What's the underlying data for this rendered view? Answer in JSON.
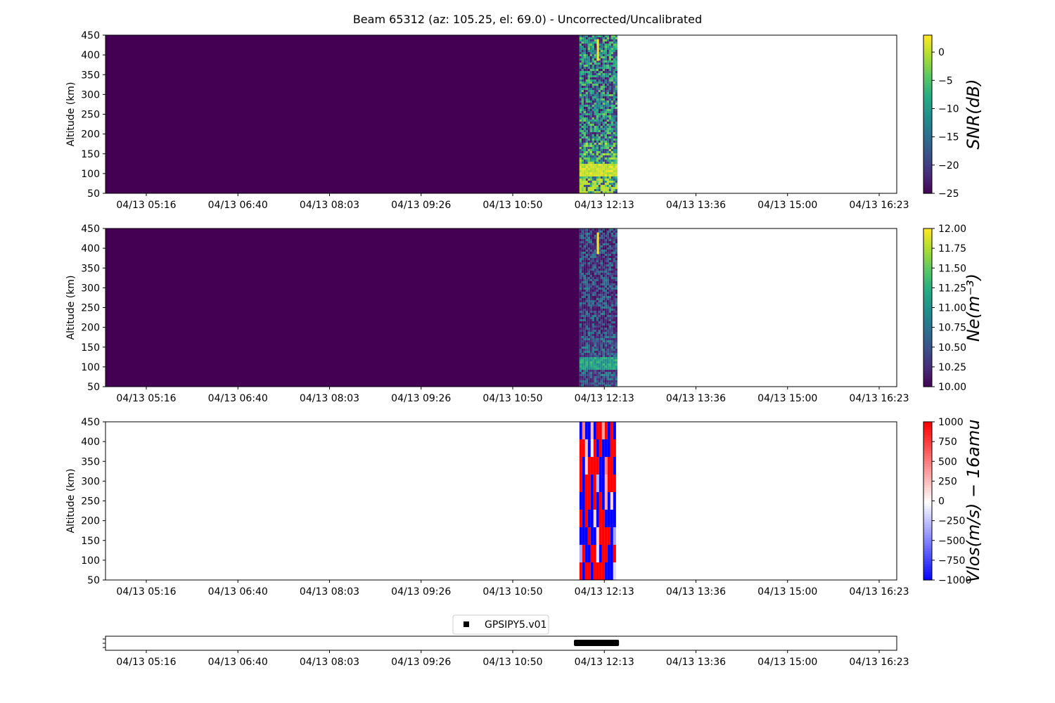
{
  "figure_title": "Beam 65312 (az: 105.25, el: 69.0) - Uncorrected/Uncalibrated",
  "time_ticks": [
    "04/13 05:16",
    "04/13 06:40",
    "04/13 08:03",
    "04/13 09:26",
    "04/13 10:50",
    "04/13 12:13",
    "04/13 13:36",
    "04/13 15:00",
    "04/13 16:23"
  ],
  "colors": {
    "viridis_low": "#440154",
    "viridis_high": "#fde725",
    "bwr_blue": "#0000ff",
    "bwr_red": "#ff0000",
    "marker": "#000000"
  },
  "chart_data": [
    {
      "type": "heatmap",
      "name": "snr",
      "ylabel": "Altitude (km)",
      "ylim": [
        50,
        450
      ],
      "yticks": [
        "50",
        "100",
        "150",
        "200",
        "250",
        "300",
        "350",
        "400",
        "450"
      ],
      "colorbar_label": "SNR(dB)",
      "colorbar_ticks": [
        "0",
        "−5",
        "−10",
        "−15",
        "−20",
        "−25"
      ],
      "colorbar_values": [
        0,
        -5,
        -10,
        -15,
        -20,
        -25
      ],
      "clim": [
        -25,
        3
      ],
      "colormap": "viridis",
      "background_fill": "viridis_low",
      "data_window": [
        "04/13 11:50",
        "04/13 12:23"
      ],
      "features": {
        "strong_layer_altitude_km": [
          95,
          125
        ],
        "vertical_spike_altitude_km": [
          385,
          440
        ]
      }
    },
    {
      "type": "heatmap",
      "name": "ne",
      "ylabel": "Altitude (km)",
      "ylim": [
        50,
        450
      ],
      "yticks": [
        "50",
        "100",
        "150",
        "200",
        "250",
        "300",
        "350",
        "400",
        "450"
      ],
      "colorbar_label": "Ne(m⁻³)",
      "colorbar_ticks": [
        "12.00",
        "11.75",
        "11.50",
        "11.25",
        "11.00",
        "10.75",
        "10.50",
        "10.25",
        "10.00"
      ],
      "colorbar_values": [
        12.0,
        11.75,
        11.5,
        11.25,
        11.0,
        10.75,
        10.5,
        10.25,
        10.0
      ],
      "clim": [
        10.0,
        12.0
      ],
      "colormap": "viridis",
      "background_fill": "viridis_low",
      "data_window": [
        "04/13 11:50",
        "04/13 12:23"
      ],
      "features": {
        "layer_altitude_km": [
          95,
          125
        ],
        "vertical_spike_altitude_km": [
          385,
          440
        ]
      }
    },
    {
      "type": "heatmap",
      "name": "vlos",
      "ylabel": "Altitude (km)",
      "ylim": [
        50,
        450
      ],
      "yticks": [
        "50",
        "100",
        "150",
        "200",
        "250",
        "300",
        "350",
        "400",
        "450"
      ],
      "colorbar_label": "Vlos(m/s) − 16amu",
      "colorbar_ticks": [
        "1000",
        "750",
        "500",
        "250",
        "0",
        "−250",
        "−500",
        "−750",
        "−1000"
      ],
      "colorbar_values": [
        1000,
        750,
        500,
        250,
        0,
        -250,
        -500,
        -750,
        -1000
      ],
      "clim": [
        -1000,
        1000
      ],
      "colormap": "bwr",
      "data_window": [
        "04/13 11:50",
        "04/13 12:23"
      ]
    },
    {
      "type": "scatter",
      "name": "experiment",
      "legend": [
        "GPSIPY5.v01"
      ],
      "legend_position": "top-center",
      "data_window": [
        "04/13 11:45",
        "04/13 12:26"
      ]
    }
  ]
}
